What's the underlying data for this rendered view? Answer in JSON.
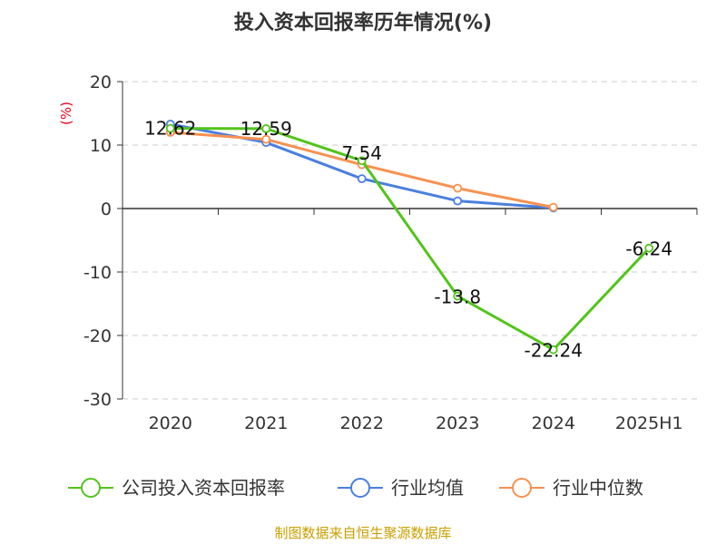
{
  "chart_data": {
    "type": "line",
    "title": "投入资本回报率历年情况(%)",
    "ylabel": "(%)",
    "categories": [
      "2020",
      "2021",
      "2022",
      "2023",
      "2024",
      "2025H1"
    ],
    "yticks": [
      "20",
      "10",
      "0",
      "-10",
      "-20",
      "-30"
    ],
    "ylim": [
      -30,
      20
    ],
    "grid": true,
    "legend_position": "bottom",
    "series": [
      {
        "name": "公司投入资本回报率",
        "color": "#52c41a",
        "values": [
          12.62,
          12.59,
          7.54,
          -13.8,
          -22.24,
          -6.24
        ],
        "labels": [
          "12.62",
          "12.59",
          "7.54",
          "-13.8",
          "-22.24",
          "-6.24"
        ]
      },
      {
        "name": "行业均值",
        "color": "#4a7fe0",
        "values": [
          13.3,
          10.4,
          4.7,
          1.2,
          0.1,
          null
        ]
      },
      {
        "name": "行业中位数",
        "color": "#f79150",
        "values": [
          12.0,
          10.9,
          6.9,
          3.2,
          0.2,
          null
        ]
      }
    ]
  },
  "source": "制图数据来自恒生聚源数据库"
}
